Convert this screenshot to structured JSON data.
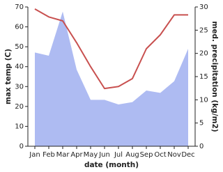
{
  "chart_data": {
    "type": "line",
    "x_label": "date (month)",
    "y_label": "max temp (C)",
    "y2_label": "med. precipitation (kg/m2)",
    "categories": [
      "Jan",
      "Feb",
      "Mar",
      "Apr",
      "May",
      "Jun",
      "Jul",
      "Aug",
      "Sep",
      "Oct",
      "Nov",
      "Dec"
    ],
    "series": [
      {
        "name": "max temp",
        "color": "#c8504f",
        "values": [
          69,
          65,
          63,
          52,
          40,
          29,
          30,
          34,
          49,
          56,
          66,
          66
        ]
      },
      {
        "name": "med. precipitation",
        "color": "#aebbf2",
        "type": "area",
        "axis": "y2",
        "values": [
          20.2,
          19.5,
          29,
          16.5,
          10,
          10,
          9,
          9.5,
          12,
          11.5,
          14,
          21
        ]
      }
    ],
    "ylim": [
      0,
      70
    ],
    "yticks": [
      0,
      10,
      20,
      30,
      40,
      50,
      60,
      70
    ],
    "y2lim": [
      0,
      30
    ],
    "y2ticks": [
      0,
      5,
      10,
      15,
      20,
      25,
      30
    ],
    "grid": false
  }
}
